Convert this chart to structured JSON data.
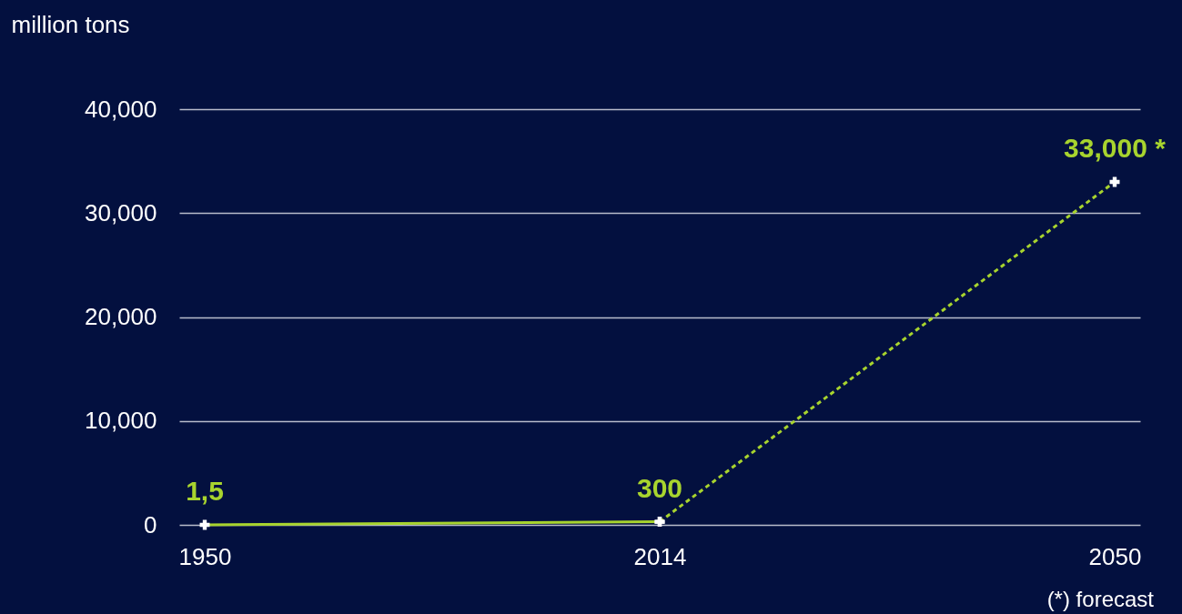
{
  "chart_data": {
    "type": "line",
    "ylabel": "million tons",
    "categories": [
      "1950",
      "2014",
      "2050"
    ],
    "series": [
      {
        "color": "#a8d42e",
        "line_style": "solid",
        "values": [
          1.5,
          300,
          null
        ],
        "value_labels": [
          "1,5",
          "300",
          null
        ]
      },
      {
        "color": "#a8d42e",
        "line_style": "dashed",
        "values": [
          null,
          300,
          33000
        ],
        "value_labels": [
          null,
          null,
          "33,000 *"
        ]
      }
    ],
    "ylim": [
      0,
      40000
    ],
    "yticks": [
      0,
      {
        "value": 10000,
        "label": "10,000"
      },
      {
        "value": 20000,
        "label": "20,000"
      },
      {
        "value": 30000,
        "label": "30,000"
      },
      {
        "value": 40000,
        "label": "40,000"
      }
    ],
    "grid": "y",
    "marker": "cross",
    "annotations": [
      "(*) forecast"
    ]
  }
}
